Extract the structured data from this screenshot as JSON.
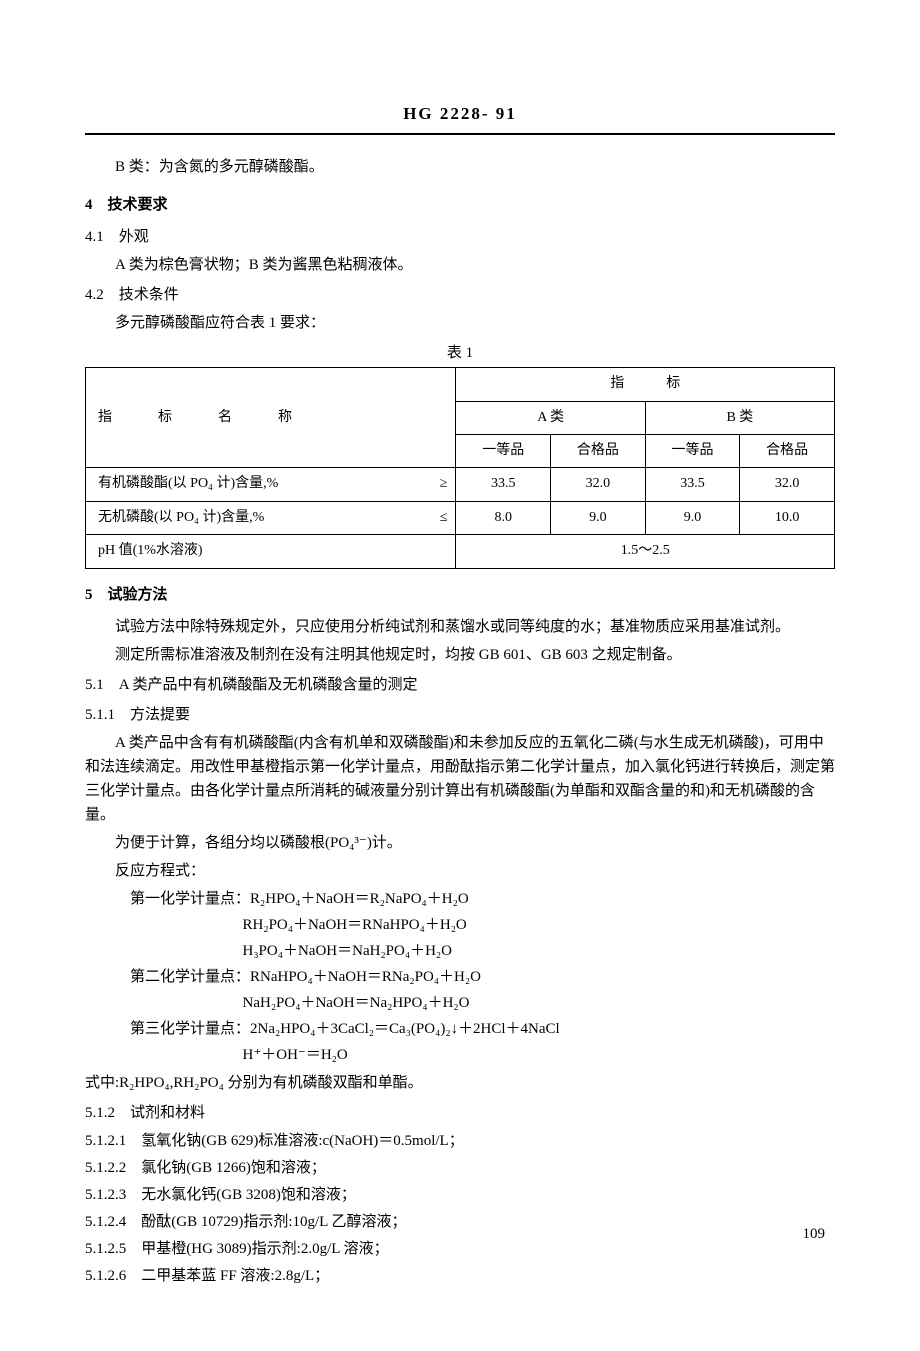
{
  "header": "HG 2228- 91",
  "intro_b": "B 类：为含氮的多元醇磷酸酯。",
  "s4": {
    "title": "4　技术要求",
    "s41": {
      "title": "4.1　外观",
      "text": "A 类为棕色膏状物；B 类为酱黑色粘稠液体。"
    },
    "s42": {
      "title": "4.2　技术条件",
      "text": "多元醇磷酸酯应符合表 1 要求："
    }
  },
  "table": {
    "caption": "表 1",
    "head_name": "指　标　名　称",
    "head_indicator": "指　　　标",
    "head_a": "A 类",
    "head_b": "B 类",
    "head_first": "一等品",
    "head_pass": "合格品",
    "rows": [
      {
        "name": "有机磷酸酯(以 PO₄ 计)含量,%",
        "sym": "≥",
        "a1": "33.5",
        "a2": "32.0",
        "b1": "33.5",
        "b2": "32.0"
      },
      {
        "name": "无机磷酸(以 PO₄ 计)含量,%",
        "sym": "≤",
        "a1": "8.0",
        "a2": "9.0",
        "b1": "9.0",
        "b2": "10.0"
      }
    ],
    "ph_row": {
      "name": "pH 值(1%水溶液)",
      "value": "1.5～2.5"
    }
  },
  "s5": {
    "title": "5　试验方法",
    "p1": "试验方法中除特殊规定外，只应使用分析纯试剂和蒸馏水或同等纯度的水；基准物质应采用基准试剂。",
    "p2": "测定所需标准溶液及制剂在没有注明其他规定时，均按 GB 601、GB 603 之规定制备。",
    "s51": {
      "title": "5.1　A 类产品中有机磷酸酯及无机磷酸含量的测定",
      "s511": {
        "title": "5.1.1　方法提要",
        "p1": "A 类产品中含有有机磷酸酯(内含有机单和双磷酸酯)和未参加反应的五氧化二磷(与水生成无机磷酸)，可用中和法连续滴定。用改性甲基橙指示第一化学计量点，用酚酞指示第二化学计量点，加入氯化钙进行转换后，测定第三化学计量点。由各化学计量点所消耗的碱液量分别计算出有机磷酸酯(为单酯和双酯含量的和)和无机磷酸的含量。",
        "p2": "为便于计算，各组分均以磷酸根(PO₄³⁻)计。",
        "p3": "反应方程式：",
        "eq1_label": "第一化学计量点：",
        "eq1_1": "R₂HPO₄＋NaOH＝R₂NaPO₄＋H₂O",
        "eq1_2": "RH₂PO₄＋NaOH＝RNaHPO₄＋H₂O",
        "eq1_3": "H₃PO₄＋NaOH＝NaH₂PO₄＋H₂O",
        "eq2_label": "第二化学计量点：",
        "eq2_1": "RNaHPO₄＋NaOH＝RNa₂PO₄＋H₂O",
        "eq2_2": "NaH₂PO₄＋NaOH＝Na₂HPO₄＋H₂O",
        "eq3_label": "第三化学计量点：",
        "eq3_1": "2Na₂HPO₄＋3CaCl₂＝Ca₃(PO₄)₂↓＋2HCl＋4NaCl",
        "eq3_2": "H⁺＋OH⁻＝H₂O",
        "p4": "式中:R₂HPO₄,RH₂PO₄ 分别为有机磷酸双酯和单酯。"
      },
      "s512": {
        "title": "5.1.2　试剂和材料",
        "items": [
          "5.1.2.1　氢氧化钠(GB 629)标准溶液:c(NaOH)＝0.5mol/L；",
          "5.1.2.2　氯化钠(GB 1266)饱和溶液；",
          "5.1.2.3　无水氯化钙(GB 3208)饱和溶液；",
          "5.1.2.4　酚酞(GB 10729)指示剂:10g/L 乙醇溶液；",
          "5.1.2.5　甲基橙(HG 3089)指示剂:2.0g/L 溶液；",
          "5.1.2.6　二甲基苯蓝 FF 溶液:2.8g/L；"
        ]
      }
    }
  },
  "page_number": "109",
  "style": {
    "background_color": "#ffffff",
    "text_color": "#000000",
    "border_color": "#000000",
    "body_fontsize": 15,
    "header_fontsize": 17,
    "table_fontsize": 14
  }
}
